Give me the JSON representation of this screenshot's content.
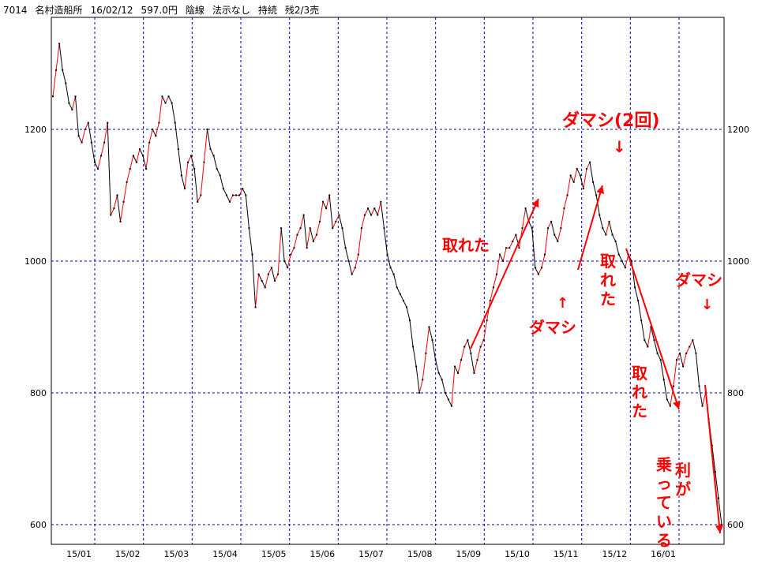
{
  "header": {
    "code": "7014",
    "name": "名村造船所",
    "date": "16/02/12",
    "price": "597.0円",
    "candle": "陰線",
    "signal": "法示なし",
    "status": "持続",
    "remaining": "残2/3売"
  },
  "chart_data": {
    "type": "line",
    "title": "",
    "xlabel": "",
    "ylabel": "",
    "ylim": [
      570,
      1370
    ],
    "x_ticks": [
      "15/01",
      "15/02",
      "15/03",
      "15/04",
      "15/05",
      "15/06",
      "15/07",
      "15/08",
      "15/09",
      "15/10",
      "15/11",
      "15/12",
      "16/01"
    ],
    "y_ticks": [
      600,
      800,
      1000,
      1200
    ],
    "grid": true,
    "colors": {
      "line_up": "#ff0000",
      "line_down": "#000000",
      "grid": "#0000aa",
      "annotation": "#ff0000"
    },
    "series": [
      {
        "values": [
          1250,
          1290,
          1330,
          1290,
          1270,
          1240,
          1230,
          1250,
          1190,
          1180,
          1200,
          1210,
          1180,
          1150,
          1140,
          1160,
          1180,
          1210,
          1070,
          1080,
          1100,
          1060,
          1090,
          1120,
          1140,
          1160,
          1150,
          1170,
          1160,
          1140,
          1180,
          1200,
          1190,
          1210,
          1250,
          1240,
          1250,
          1240,
          1210,
          1170,
          1130,
          1110,
          1150,
          1160,
          1140,
          1090,
          1100,
          1150,
          1200,
          1170,
          1160,
          1140,
          1130,
          1110,
          1100,
          1090,
          1100,
          1100,
          1100,
          1110,
          1100,
          1050,
          1010,
          930,
          980,
          970,
          960,
          980,
          990,
          970,
          980,
          1050,
          1000,
          990,
          1010,
          1020,
          1040,
          1050,
          1070,
          1020,
          1050,
          1030,
          1040,
          1060,
          1090,
          1080,
          1100,
          1050,
          1060,
          1070,
          1050,
          1020,
          1000,
          980,
          990,
          1010,
          1050,
          1070,
          1080,
          1070,
          1080,
          1070,
          1090,
          1050,
          1010,
          990,
          980,
          960,
          950,
          940,
          930,
          910,
          870,
          840,
          800,
          820,
          860,
          900,
          880,
          850,
          830,
          820,
          800,
          790,
          780,
          840,
          830,
          850,
          870,
          880,
          860,
          830,
          850,
          870,
          880,
          910,
          940,
          960,
          980,
          1010,
          1000,
          1020,
          1020,
          1030,
          1040,
          1020,
          1050,
          1080,
          1060,
          1050,
          990,
          980,
          990,
          1010,
          1050,
          1060,
          1040,
          1030,
          1050,
          1080,
          1100,
          1130,
          1120,
          1140,
          1130,
          1110,
          1140,
          1150,
          1120,
          1100,
          1070,
          1050,
          1040,
          1060,
          1040,
          1030,
          1010,
          1000,
          990,
          1010,
          1000,
          960,
          940,
          910,
          880,
          870,
          900,
          880,
          860,
          850,
          820,
          790,
          780,
          810,
          850,
          860,
          840,
          860,
          870,
          880,
          860,
          810,
          780,
          800,
          760,
          720,
          680,
          640,
          600
        ]
      }
    ],
    "annotations": [
      {
        "text": "ダマシ(2回)",
        "color": "#ff0000"
      },
      {
        "text": "↓",
        "color": "#ff0000"
      },
      {
        "text": "取れた",
        "color": "#ff0000"
      },
      {
        "text": "↑",
        "color": "#ff0000"
      },
      {
        "text": "ダマシ",
        "color": "#ff0000"
      },
      {
        "text": "取",
        "color": "#ff0000"
      },
      {
        "text": "れ",
        "color": "#ff0000"
      },
      {
        "text": "た",
        "color": "#ff0000"
      },
      {
        "text": "ダマシ",
        "color": "#ff0000"
      },
      {
        "text": "↓",
        "color": "#ff0000"
      },
      {
        "text": "取",
        "color": "#ff0000"
      },
      {
        "text": "れ",
        "color": "#ff0000"
      },
      {
        "text": "た",
        "color": "#ff0000"
      },
      {
        "text": "利",
        "color": "#ff0000"
      },
      {
        "text": "が",
        "color": "#ff0000"
      },
      {
        "text": "乗",
        "color": "#ff0000"
      },
      {
        "text": "っ",
        "color": "#ff0000"
      },
      {
        "text": "て",
        "color": "#ff0000"
      },
      {
        "text": "い",
        "color": "#ff0000"
      },
      {
        "text": "る",
        "color": "#ff0000"
      }
    ]
  }
}
